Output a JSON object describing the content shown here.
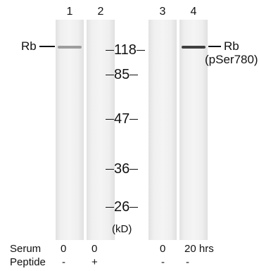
{
  "lanes": [
    {
      "number": "1",
      "band": "faint"
    },
    {
      "number": "2",
      "band": "none"
    },
    {
      "number": "3",
      "band": "none"
    },
    {
      "number": "4",
      "band": "strong"
    }
  ],
  "markers": {
    "m118": "118",
    "m85": "85",
    "m47": "47",
    "m36": "36",
    "m26": "26",
    "unit": "(kD)"
  },
  "left_label": "Rb",
  "right_label_line1": "Rb",
  "right_label_line2": "(pSer780)",
  "conditions": {
    "serum_label": "Serum",
    "peptide_label": "Peptide",
    "serum_values": [
      "0",
      "0",
      "0",
      "20 hrs"
    ],
    "peptide_values": [
      "-",
      "+",
      "-",
      "-"
    ]
  }
}
